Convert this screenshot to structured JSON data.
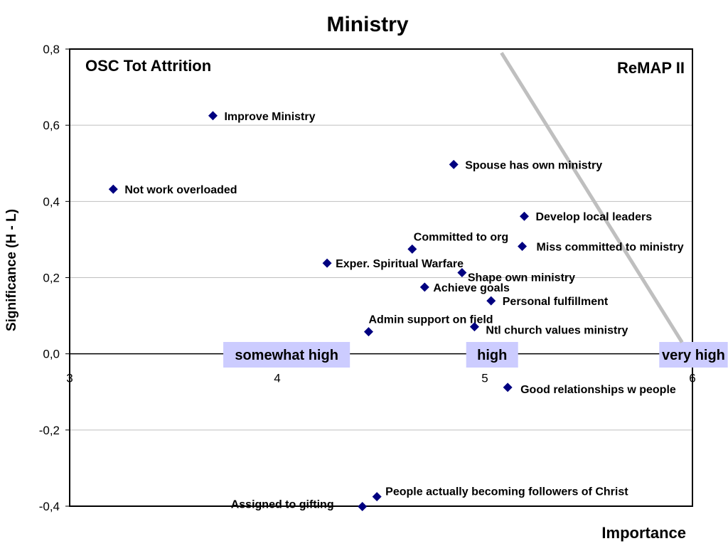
{
  "chart_data": {
    "type": "scatter",
    "title": "Ministry",
    "xlabel": "Importance",
    "ylabel": "Significance (H - L)",
    "xlim": [
      3,
      6
    ],
    "ylim": [
      -0.4,
      0.8
    ],
    "x_ticks": [
      "3",
      "4",
      "5",
      "6"
    ],
    "y_ticks": [
      "-0,4",
      "-0,2",
      "0,0",
      "0,2",
      "0,4",
      "0,6",
      "0,8"
    ],
    "grid": "horizontal",
    "legend": "none",
    "annotations": {
      "top_left": "OSC Tot Attrition",
      "top_right": "ReMAP II"
    },
    "bands": [
      {
        "label": "somewhat high",
        "x_start": 3.74,
        "x_end": 4.35
      },
      {
        "label": "high",
        "x_start": 4.91,
        "x_end": 5.16
      },
      {
        "label": "very high",
        "x_start": 5.84,
        "x_end": 6.17
      }
    ],
    "divider_line": {
      "x1": 5.08,
      "y1": 0.79,
      "x2": 5.95,
      "y2": 0.03
    },
    "points": [
      {
        "label": "Improve Ministry",
        "x": 3.69,
        "y": 0.625
      },
      {
        "label": "Not work overloaded",
        "x": 3.21,
        "y": 0.432
      },
      {
        "label": "Spouse has own ministry",
        "x": 4.85,
        "y": 0.497
      },
      {
        "label": "Develop local leaders",
        "x": 5.19,
        "y": 0.361
      },
      {
        "label": "Committed to org",
        "x": 4.65,
        "y": 0.275
      },
      {
        "label": "Miss committed to ministry",
        "x": 5.18,
        "y": 0.282
      },
      {
        "label": "Exper. Spiritual Warfare",
        "x": 4.24,
        "y": 0.238
      },
      {
        "label": "Shape own ministry",
        "x": 4.89,
        "y": 0.213
      },
      {
        "label": "Achieve goals",
        "x": 4.71,
        "y": 0.175
      },
      {
        "label": "Personal fulfillment",
        "x": 5.03,
        "y": 0.139
      },
      {
        "label": "Admin support on field",
        "x": 4.44,
        "y": 0.058
      },
      {
        "label": "Ntl church values ministry",
        "x": 4.95,
        "y": 0.071
      },
      {
        "label": "Good relationships w people",
        "x": 5.11,
        "y": -0.088
      },
      {
        "label": "People actually becoming followers of Christ",
        "x": 4.48,
        "y": -0.375
      },
      {
        "label": "Assigned to gifting",
        "x": 4.41,
        "y": -0.401
      }
    ],
    "colors": {
      "marker": "#000080",
      "band": "#ccccff",
      "divider": "#bfbfbf",
      "grid": "#bfbfbf"
    }
  }
}
